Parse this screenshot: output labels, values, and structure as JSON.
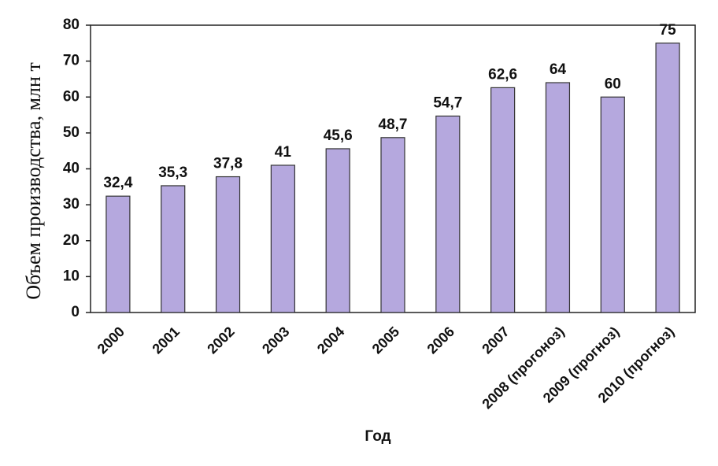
{
  "chart_data": {
    "type": "bar",
    "categories": [
      "2000",
      "2001",
      "2002",
      "2003",
      "2004",
      "2005",
      "2006",
      "2007",
      "2008 (прогоноз)",
      "2009 (прогноз)",
      "2010 (прогноз)"
    ],
    "values": [
      32.4,
      35.3,
      37.8,
      41,
      45.6,
      48.7,
      54.7,
      62.6,
      64,
      60,
      75
    ],
    "value_labels": [
      "32,4",
      "35,3",
      "37,8",
      "41",
      "45,6",
      "48,7",
      "54,7",
      "62,6",
      "64",
      "60",
      "75"
    ],
    "color": "#b5a8de",
    "ylim": [
      0,
      80
    ],
    "yticks": [
      0,
      10,
      20,
      30,
      40,
      50,
      60,
      70,
      80
    ],
    "grid": false,
    "x_label": "Год",
    "y_label": "Объем производства, млн т"
  }
}
